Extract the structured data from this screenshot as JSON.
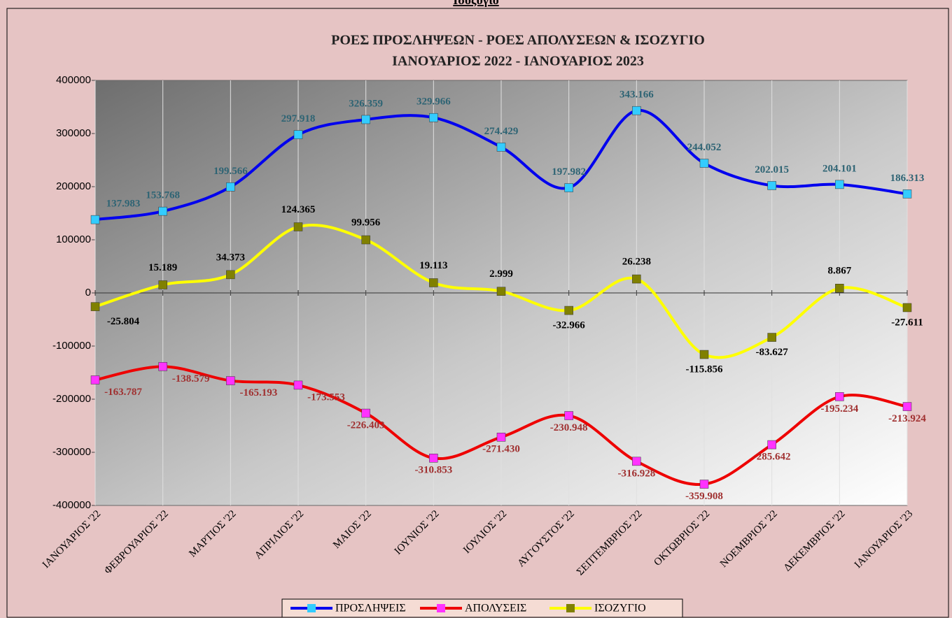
{
  "page_header": "Ισοζύγιο",
  "chart_data": {
    "type": "line",
    "title": "ΡΟΕΣ ΠΡΟΣΛΗΨΕΩΝ -  ΡΟΕΣ ΑΠΟΛΥΣΕΩΝ  & ΙΣΟΖΥΓΙΟ",
    "subtitle": "ΙΑΝΟΥΑΡΙΟΣ 2022   - ΙΑΝΟΥΑΡΙΟΣ  2023",
    "categories": [
      "ΙΑΝΟΥΑΡΙΟΣ '22",
      "ΦΕΒΡΟΥΑΡΙΟΣ '22",
      "ΜΑΡΤΙΟΣ '22",
      "ΑΠΡΙΛΙΟΣ '22",
      "ΜΑΙΟΣ '22",
      "ΙΟΥΝΙΟΣ '22",
      "ΙΟΥΛΙΟΣ '22",
      "ΑΥΓΟΥΣΤΟΣ '22",
      "ΣΕΠΤΕΜΒΡΙΟΣ '22",
      "ΟΚΤΩΒΡΙΟΣ '22",
      "ΝΟΕΜΒΡΙΟΣ '22",
      "ΔΕΚΕΜΒΡΙΟΣ '22",
      "ΙΑΝΟΥΑΡΙΟΣ '23"
    ],
    "series": [
      {
        "name": "ΠΡΟΣΛΗΨΕΙΣ",
        "color": "#0000ee",
        "marker_color": "#33ccff",
        "label_color": "#2e6474",
        "values": [
          137983,
          153768,
          199566,
          297918,
          326359,
          329966,
          274429,
          197982,
          343166,
          244052,
          202015,
          204101,
          186313
        ],
        "value_labels": [
          "137.983",
          "153.768",
          "199.566",
          "297.918",
          "326.359",
          "329.966",
          "274.429",
          "197.982",
          "343.166",
          "244.052",
          "202.015",
          "204.101",
          "186.313"
        ]
      },
      {
        "name": "ΑΠΟΛΥΣΕΙΣ",
        "color": "#ee0000",
        "marker_color": "#ff33ff",
        "label_color": "#a03030",
        "values": [
          -163787,
          -138579,
          -165193,
          -173553,
          -226403,
          -310853,
          -271430,
          -230948,
          -316928,
          -359908,
          -285642,
          -195234,
          -213924
        ],
        "value_labels": [
          "-163.787",
          "-138.579",
          "-165.193",
          "-173.553",
          "-226.403",
          "-310.853",
          "-271.430",
          "-230.948",
          "-316.928",
          "-359.908",
          "-285.642",
          "-195.234",
          "-213.924"
        ]
      },
      {
        "name": "ΙΣΟΖΥΓΙΟ",
        "color": "#ffff00",
        "marker_color": "#808000",
        "label_color": "#000000",
        "values": [
          -25804,
          15189,
          34373,
          124365,
          99956,
          19113,
          2999,
          -32966,
          26238,
          -115856,
          -83627,
          8867,
          -27611
        ],
        "value_labels": [
          "-25.804",
          "15.189",
          "34.373",
          "124.365",
          "99.956",
          "19.113",
          "2.999",
          "-32.966",
          "26.238",
          "-115.856",
          "-83.627",
          "8.867",
          "-27.611"
        ]
      }
    ],
    "ylim": [
      -400000,
      400000
    ],
    "yticks": [
      -400000,
      -300000,
      -200000,
      -100000,
      0,
      100000,
      200000,
      300000,
      400000
    ],
    "grid": true,
    "smooth": true,
    "legend": "bottom"
  }
}
